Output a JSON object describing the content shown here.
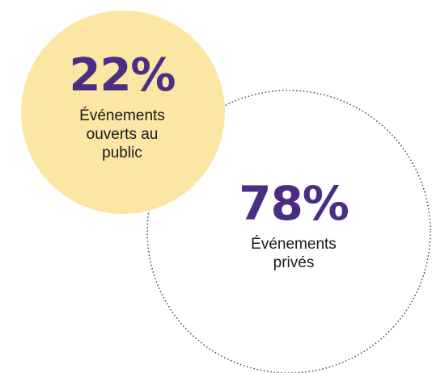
{
  "chart_data": {
    "type": "pie",
    "series": [
      {
        "value": 22,
        "percent_label": "22%",
        "label_lines": [
          "Événements",
          "ouverts au",
          "public"
        ],
        "fill": "#fbe6a4",
        "style": "filled"
      },
      {
        "value": 78,
        "percent_label": "78%",
        "label_lines": [
          "Événements",
          "privés"
        ],
        "stroke": "#3d3a6e",
        "style": "dotted-outline"
      }
    ],
    "text_color": "#4b2e83"
  }
}
